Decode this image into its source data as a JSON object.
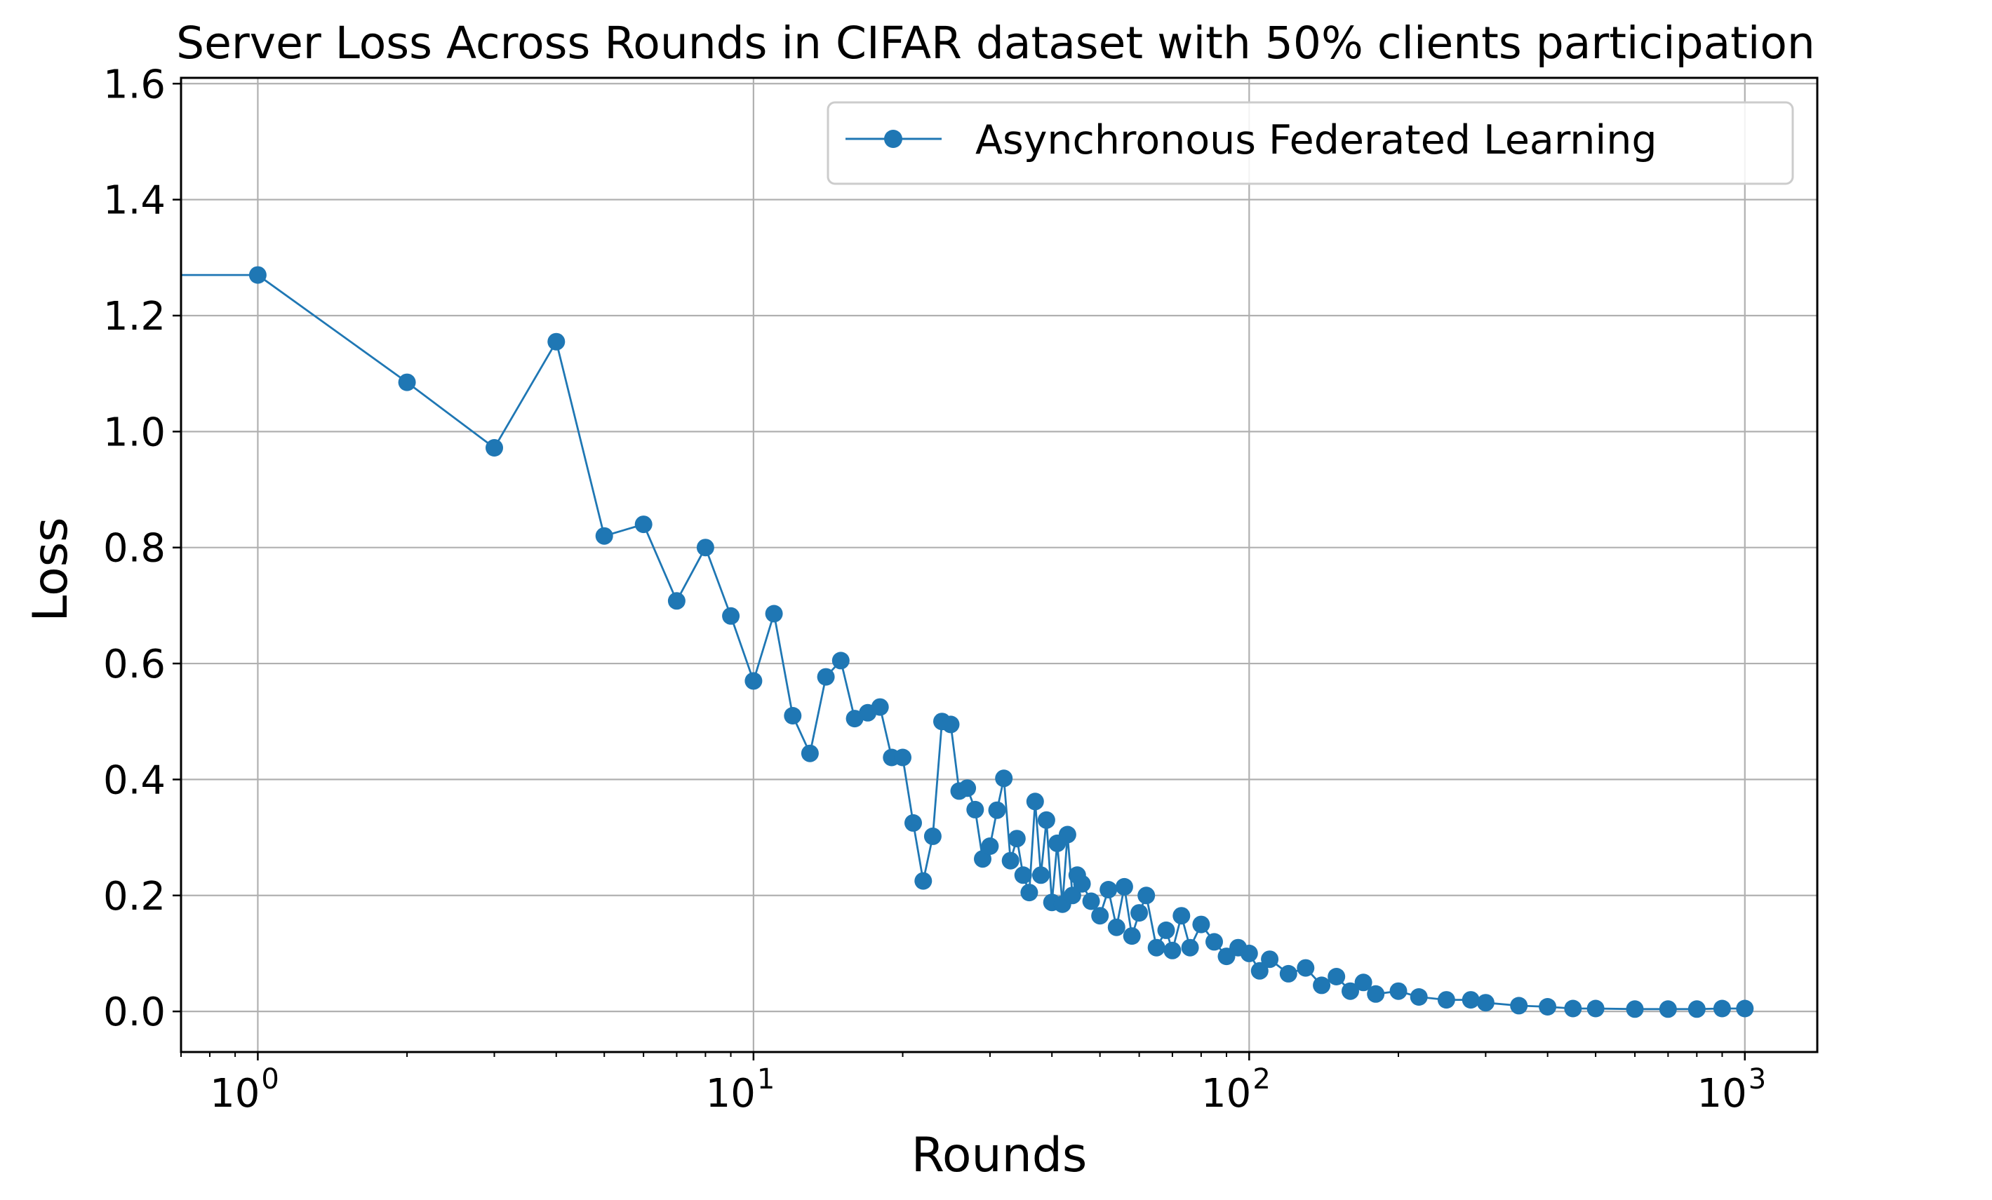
{
  "chart_data": {
    "type": "line",
    "title": "Server Loss Across Rounds in CIFAR dataset with 50% clients participation",
    "xlabel": "Rounds",
    "ylabel": "Loss",
    "xscale": "log",
    "xlim": [
      0.7,
      1400
    ],
    "ylim": [
      -0.07,
      1.61
    ],
    "grid": true,
    "legend_position": "top-right",
    "marker": "circle",
    "color": "#1f77b4",
    "x_ticks": [
      {
        "value": 1,
        "base": "10",
        "exp": "0"
      },
      {
        "value": 10,
        "base": "10",
        "exp": "1"
      },
      {
        "value": 100,
        "base": "10",
        "exp": "2"
      },
      {
        "value": 1000,
        "base": "10",
        "exp": "3"
      }
    ],
    "y_ticks": [
      {
        "value": 0.0,
        "label": "0.0"
      },
      {
        "value": 0.2,
        "label": "0.2"
      },
      {
        "value": 0.4,
        "label": "0.4"
      },
      {
        "value": 0.6,
        "label": "0.6"
      },
      {
        "value": 0.8,
        "label": "0.8"
      },
      {
        "value": 1.0,
        "label": "1.0"
      },
      {
        "value": 1.2,
        "label": "1.2"
      },
      {
        "value": 1.4,
        "label": "1.4"
      },
      {
        "value": 1.6,
        "label": "1.6"
      }
    ],
    "series": [
      {
        "name": "Asynchronous Federated Learning",
        "x": [
          0,
          1,
          2,
          3,
          4,
          5,
          6,
          7,
          8,
          9,
          10,
          11,
          12,
          13,
          14,
          15,
          16,
          17,
          18,
          19,
          20,
          21,
          22,
          23,
          24,
          25,
          26,
          27,
          28,
          29,
          30,
          31,
          32,
          33,
          34,
          35,
          36,
          37,
          38,
          39,
          40,
          41,
          42,
          43,
          44,
          45,
          46,
          48,
          50,
          52,
          54,
          56,
          58,
          60,
          62,
          65,
          68,
          70,
          73,
          76,
          80,
          85,
          90,
          95,
          100,
          105,
          110,
          120,
          130,
          140,
          150,
          160,
          170,
          180,
          200,
          220,
          250,
          280,
          300,
          350,
          400,
          450,
          500,
          600,
          700,
          800,
          900,
          1000
        ],
        "y": [
          1.27,
          1.27,
          1.085,
          0.972,
          1.155,
          0.82,
          0.84,
          0.708,
          0.8,
          0.682,
          0.57,
          0.686,
          0.51,
          0.445,
          0.577,
          0.605,
          0.505,
          0.515,
          0.525,
          0.438,
          0.438,
          0.325,
          0.225,
          0.302,
          0.5,
          0.495,
          0.38,
          0.385,
          0.348,
          0.263,
          0.285,
          0.347,
          0.402,
          0.26,
          0.298,
          0.235,
          0.205,
          0.362,
          0.235,
          0.33,
          0.188,
          0.29,
          0.185,
          0.305,
          0.2,
          0.235,
          0.22,
          0.19,
          0.165,
          0.21,
          0.145,
          0.215,
          0.13,
          0.17,
          0.2,
          0.11,
          0.14,
          0.105,
          0.165,
          0.11,
          0.15,
          0.12,
          0.095,
          0.11,
          0.1,
          0.07,
          0.09,
          0.065,
          0.075,
          0.045,
          0.06,
          0.035,
          0.05,
          0.03,
          0.035,
          0.025,
          0.02,
          0.02,
          0.015,
          0.01,
          0.008,
          0.005,
          0.005,
          0.004,
          0.004,
          0.004,
          0.005,
          0.005
        ]
      }
    ]
  }
}
